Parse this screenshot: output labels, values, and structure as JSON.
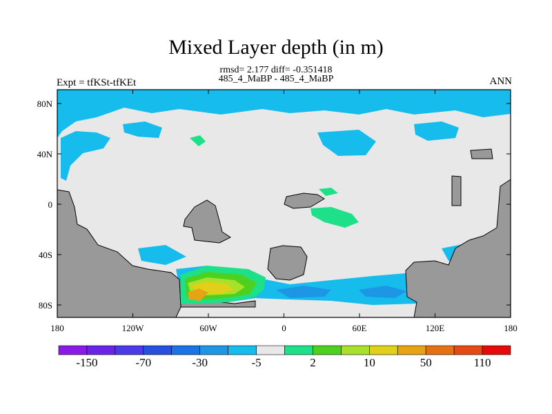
{
  "title": "Mixed Layer depth (in m)",
  "stats_line": "rmsd= 2.177 diff= -0.351418",
  "subtitle": "485_4_MaBP - 485_4_MaBP",
  "experiment": "Expt = tfKSt-tfKEt",
  "season": "ANN",
  "axes": {
    "lat_ticks": [
      "80N",
      "40N",
      "0",
      "40S",
      "80S"
    ],
    "lon_ticks": [
      "180",
      "120W",
      "60W",
      "0",
      "60E",
      "120E",
      "180"
    ]
  },
  "colorbar": {
    "colors": [
      "#8a1ae6",
      "#6a24e8",
      "#4a3ae8",
      "#2850e0",
      "#1a74e8",
      "#1e96e6",
      "#16bcec",
      "#e8e8e8",
      "#1ee088",
      "#4ed01e",
      "#a8e02a",
      "#e0d01a",
      "#e6a414",
      "#e67014",
      "#e64a14",
      "#e60a0a"
    ],
    "labels": [
      "-150",
      "-70",
      "-30",
      "-5",
      "2",
      "10",
      "50",
      "110"
    ]
  },
  "land_color": "#999999",
  "ocean_color": "#e8e8e8"
}
